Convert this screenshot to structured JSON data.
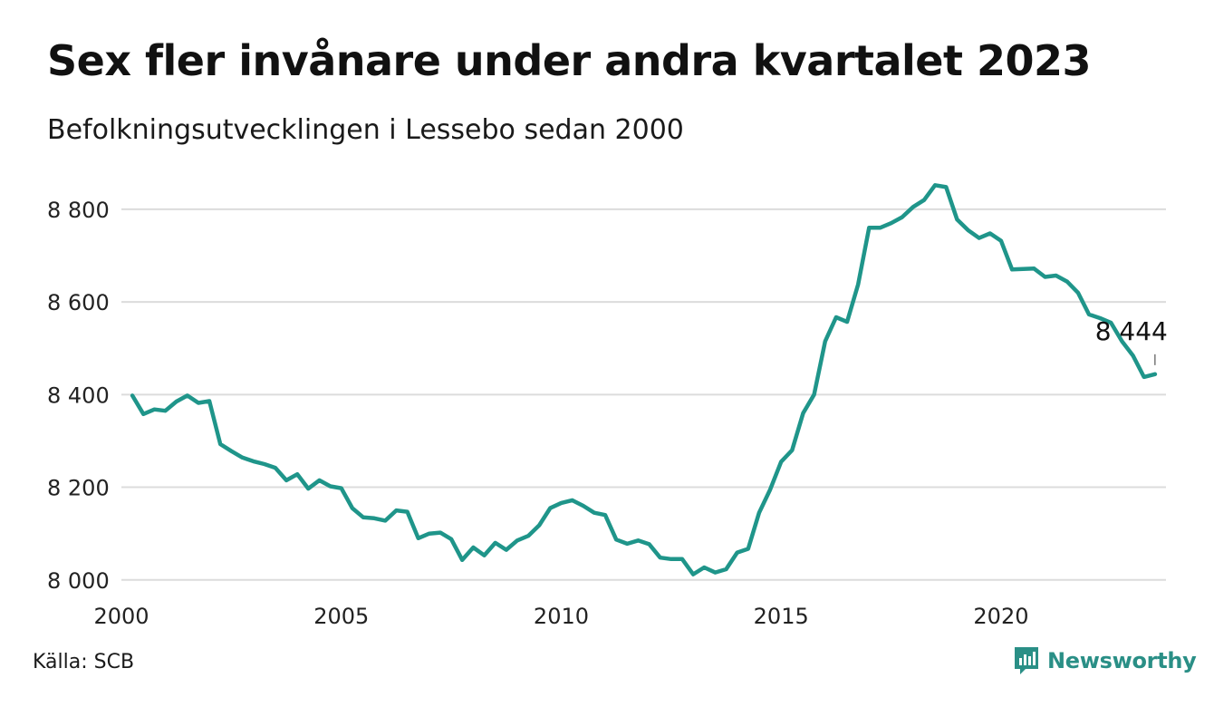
{
  "title": "Sex fler invånare under andra kvartalet 2023",
  "subtitle": "Befolkningsutvecklingen i Lessebo sedan 2000",
  "source": "Källa: SCB",
  "brand": {
    "name": "Newsworthy",
    "icon": "newsworthy-logo-icon",
    "color": "#2a8f86"
  },
  "chart_data": {
    "type": "line",
    "title": "Sex fler invånare under andra kvartalet 2023",
    "subtitle": "Befolkningsutvecklingen i Lessebo sedan 2000",
    "xlabel": "",
    "ylabel": "",
    "xlim": [
      2000,
      2023.75
    ],
    "ylim": [
      7980,
      8880
    ],
    "x_ticks": [
      2000,
      2005,
      2010,
      2015,
      2020
    ],
    "x_tick_labels": [
      "2000",
      "2005",
      "2010",
      "2015",
      "2020"
    ],
    "y_ticks": [
      8000,
      8200,
      8400,
      8600,
      8800
    ],
    "y_tick_labels": [
      "8 000",
      "8 200",
      "8 400",
      "8 600",
      "8 800"
    ],
    "grid": true,
    "line_color": "#1f958a",
    "end_label": "8 444",
    "series": [
      {
        "x": [
          2000.25,
          2000.5,
          2000.75,
          2001.0,
          2001.25,
          2001.5,
          2001.75,
          2002.0,
          2002.25,
          2002.5,
          2002.75,
          2003.0,
          2003.25,
          2003.5,
          2003.75,
          2004.0,
          2004.25,
          2004.5,
          2004.75,
          2005.0,
          2005.25,
          2005.5,
          2005.75,
          2006.0,
          2006.25,
          2006.5,
          2006.75,
          2007.0,
          2007.25,
          2007.5,
          2007.75,
          2008.0,
          2008.25,
          2008.5,
          2008.75,
          2009.0,
          2009.25,
          2009.5,
          2009.75,
          2010.0,
          2010.25,
          2010.5,
          2010.75,
          2011.0,
          2011.25,
          2011.5,
          2011.75,
          2012.0,
          2012.25,
          2012.5,
          2012.75,
          2013.0,
          2013.25,
          2013.5,
          2013.75,
          2014.0,
          2014.25,
          2014.5,
          2014.75,
          2015.0,
          2015.25,
          2015.5,
          2015.75,
          2016.0,
          2016.25,
          2016.5,
          2016.75,
          2017.0,
          2017.25,
          2017.5,
          2017.75,
          2018.0,
          2018.25,
          2018.5,
          2018.75,
          2019.0,
          2019.25,
          2019.5,
          2019.75,
          2020.0,
          2020.25,
          2020.5,
          2020.75,
          2021.0,
          2021.25,
          2021.5,
          2021.75,
          2022.0,
          2022.25,
          2022.5,
          2022.75,
          2023.0,
          2023.25,
          2023.5
        ],
        "values": [
          8398,
          8358,
          8368,
          8365,
          8385,
          8398,
          8382,
          8386,
          8293,
          8278,
          8264,
          8256,
          8250,
          8242,
          8215,
          8228,
          8197,
          8215,
          8202,
          8198,
          8155,
          8135,
          8133,
          8128,
          8150,
          8147,
          8090,
          8100,
          8102,
          8088,
          8043,
          8070,
          8053,
          8080,
          8065,
          8085,
          8095,
          8118,
          8155,
          8166,
          8172,
          8160,
          8145,
          8140,
          8087,
          8078,
          8085,
          8077,
          8048,
          8045,
          8045,
          8012,
          8027,
          8016,
          8023,
          8059,
          8067,
          8145,
          8195,
          8255,
          8280,
          8360,
          8400,
          8515,
          8567,
          8557,
          8638,
          8760,
          8760,
          8770,
          8783,
          8805,
          8820,
          8852,
          8848,
          8778,
          8755,
          8738,
          8748,
          8732,
          8670,
          8671,
          8672,
          8654,
          8657,
          8644,
          8620,
          8573,
          8565,
          8555,
          8515,
          8484,
          8438,
          8444
        ]
      }
    ]
  }
}
